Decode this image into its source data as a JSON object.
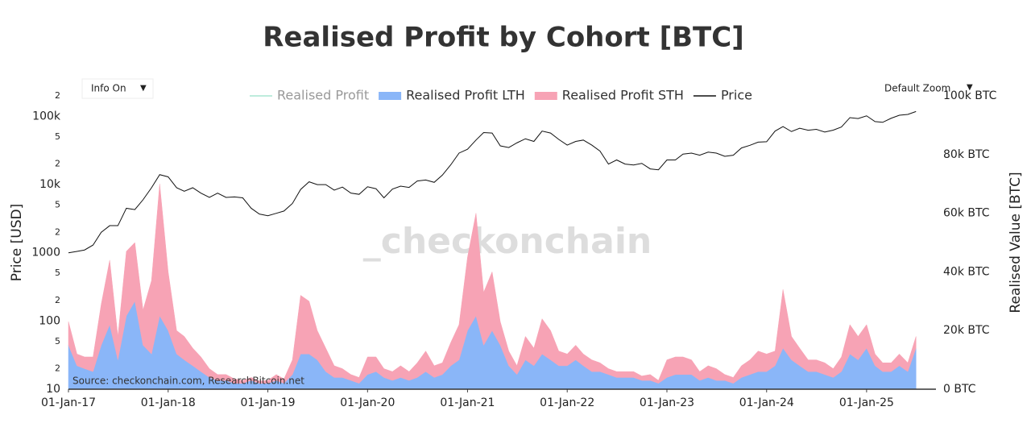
{
  "chart_data": {
    "type": "area",
    "title": "Realised Profit by Cohort [BTC]",
    "ylabel": "Price [USD]",
    "y2label": "Realised Value [BTC]",
    "source": "Source: checkonchain.com, ResearchBitcoin.net",
    "watermark": "_checkonchain",
    "buttons": [
      "Info On",
      "Default Zoom"
    ],
    "log_y": true,
    "grid": false,
    "legend": "top",
    "stacked": true,
    "xlim": [
      "2017-01-01",
      "2025-09-12"
    ],
    "xticks": [
      {
        "value": "2017-01-01",
        "label": "01-Jan-17"
      },
      {
        "value": "2018-01-01",
        "label": "01-Jan-18"
      },
      {
        "value": "2019-01-01",
        "label": "01-Jan-19"
      },
      {
        "value": "2020-01-01",
        "label": "01-Jan-20"
      },
      {
        "value": "2021-01-01",
        "label": "01-Jan-21"
      },
      {
        "value": "2022-01-01",
        "label": "01-Jan-22"
      },
      {
        "value": "2023-01-01",
        "label": "01-Jan-23"
      },
      {
        "value": "2024-01-01",
        "label": "01-Jan-24"
      },
      {
        "value": "2025-01-01",
        "label": "01-Jan-25"
      }
    ],
    "ylim": [
      10,
      200000
    ],
    "yticks": [
      10,
      {
        "value": 20,
        "label": "2"
      },
      {
        "value": 50,
        "label": "5"
      },
      100,
      {
        "value": 200,
        "label": "2"
      },
      {
        "value": 500,
        "label": "5"
      },
      1000,
      {
        "value": 2000,
        "label": "2"
      },
      {
        "value": 5000,
        "label": "5"
      },
      {
        "value": 10000,
        "label": "10k"
      },
      {
        "value": 20000,
        "label": "2"
      },
      {
        "value": 50000,
        "label": "5"
      },
      {
        "value": 100000,
        "label": "100k"
      },
      {
        "value": 200000,
        "label": "2"
      }
    ],
    "y2lim": [
      0,
      100000
    ],
    "y2ticks": [
      {
        "value": 0,
        "label": "0 BTC"
      },
      {
        "value": 20000,
        "label": "20k BTC"
      },
      {
        "value": 40000,
        "label": "40k BTC"
      },
      {
        "value": 60000,
        "label": "60k BTC"
      },
      {
        "value": 80000,
        "label": "80k BTC"
      },
      {
        "value": 100000,
        "label": "100k BTC"
      }
    ],
    "x": [
      "2017-01-01",
      "2017-02-01",
      "2017-03-01",
      "2017-04-01",
      "2017-05-01",
      "2017-06-01",
      "2017-07-01",
      "2017-08-01",
      "2017-09-01",
      "2017-10-01",
      "2017-11-01",
      "2017-12-01",
      "2018-01-01",
      "2018-02-01",
      "2018-03-01",
      "2018-04-01",
      "2018-05-01",
      "2018-06-01",
      "2018-07-01",
      "2018-08-01",
      "2018-09-01",
      "2018-10-01",
      "2018-11-01",
      "2018-12-01",
      "2019-01-01",
      "2019-02-01",
      "2019-03-01",
      "2019-04-01",
      "2019-05-01",
      "2019-06-01",
      "2019-07-01",
      "2019-08-01",
      "2019-09-01",
      "2019-10-01",
      "2019-11-01",
      "2019-12-01",
      "2020-01-01",
      "2020-02-01",
      "2020-03-01",
      "2020-04-01",
      "2020-05-01",
      "2020-06-01",
      "2020-07-01",
      "2020-08-01",
      "2020-09-01",
      "2020-10-01",
      "2020-11-01",
      "2020-12-01",
      "2021-01-01",
      "2021-02-01",
      "2021-03-01",
      "2021-04-01",
      "2021-05-01",
      "2021-06-01",
      "2021-07-01",
      "2021-08-01",
      "2021-09-01",
      "2021-10-01",
      "2021-11-01",
      "2021-12-01",
      "2022-01-01",
      "2022-02-01",
      "2022-03-01",
      "2022-04-01",
      "2022-05-01",
      "2022-06-01",
      "2022-07-01",
      "2022-08-01",
      "2022-09-01",
      "2022-10-01",
      "2022-11-01",
      "2022-12-01",
      "2023-01-01",
      "2023-02-01",
      "2023-03-01",
      "2023-04-01",
      "2023-05-01",
      "2023-06-01",
      "2023-07-01",
      "2023-08-01",
      "2023-09-01",
      "2023-10-01",
      "2023-11-01",
      "2023-12-01",
      "2024-01-01",
      "2024-02-01",
      "2024-03-01",
      "2024-04-01",
      "2024-05-01",
      "2024-06-01",
      "2024-07-01",
      "2024-08-01",
      "2024-09-01",
      "2024-10-01",
      "2024-11-01",
      "2024-12-01",
      "2025-01-01",
      "2025-02-01",
      "2025-03-01",
      "2025-04-01",
      "2025-05-01",
      "2025-06-01",
      "2025-07-01"
    ],
    "series": [
      {
        "name": "Realised Profit",
        "color": "#a8e6d0",
        "visible": false
      },
      {
        "name": "Realised Profit LTH",
        "color": "#8ab6f8",
        "axis": "y2",
        "values": [
          15000,
          8000,
          7000,
          6000,
          15000,
          22000,
          10000,
          25000,
          30000,
          15000,
          12000,
          25000,
          20000,
          12000,
          10000,
          8000,
          6000,
          4000,
          3000,
          3000,
          2000,
          2000,
          3000,
          2000,
          2000,
          3000,
          2000,
          5000,
          12000,
          12000,
          10000,
          6000,
          4000,
          4000,
          3000,
          2000,
          5000,
          6000,
          4000,
          3000,
          4000,
          3000,
          4000,
          6000,
          4000,
          5000,
          8000,
          10000,
          20000,
          25000,
          15000,
          20000,
          15000,
          8000,
          5000,
          10000,
          8000,
          12000,
          10000,
          8000,
          8000,
          10000,
          8000,
          6000,
          6000,
          5000,
          4000,
          4000,
          4000,
          3000,
          3000,
          2000,
          4000,
          5000,
          5000,
          5000,
          3000,
          4000,
          3000,
          3000,
          2000,
          4000,
          5000,
          6000,
          6000,
          8000,
          14000,
          10000,
          8000,
          6000,
          6000,
          5000,
          4000,
          6000,
          12000,
          10000,
          14000,
          8000,
          6000,
          6000,
          8000,
          6000,
          14000
        ]
      },
      {
        "name": "Realised Profit STH",
        "color": "#f7a3b5",
        "axis": "y2",
        "values": [
          8000,
          4000,
          4000,
          5000,
          14000,
          22000,
          8000,
          22000,
          20000,
          12000,
          25000,
          45000,
          20000,
          8000,
          8000,
          6000,
          5000,
          3000,
          2000,
          2000,
          1500,
          1000,
          1000,
          800,
          1000,
          2000,
          1500,
          5000,
          20000,
          18000,
          10000,
          8000,
          4000,
          3000,
          2000,
          2000,
          6000,
          5000,
          3000,
          3000,
          4000,
          3000,
          5000,
          7000,
          4000,
          4000,
          8000,
          12000,
          25000,
          35000,
          18000,
          20000,
          8000,
          5000,
          3000,
          8000,
          6000,
          12000,
          10000,
          5000,
          4000,
          5000,
          4000,
          4000,
          3000,
          2000,
          2000,
          2000,
          2000,
          1500,
          2000,
          1000,
          6000,
          6000,
          6000,
          5000,
          3000,
          4000,
          4000,
          2000,
          2000,
          4000,
          5000,
          7000,
          6000,
          5000,
          20000,
          8000,
          6000,
          4000,
          4000,
          4000,
          3000,
          5000,
          10000,
          8000,
          8000,
          4000,
          3000,
          3000,
          4000,
          3000,
          4000
        ]
      },
      {
        "name": "Price",
        "color": "#111111",
        "axis": "y",
        "values": [
          1000,
          1050,
          1100,
          1300,
          2000,
          2500,
          2500,
          4500,
          4300,
          6000,
          9000,
          14000,
          13000,
          9000,
          8000,
          9000,
          7500,
          6500,
          7500,
          6500,
          6600,
          6400,
          4500,
          3700,
          3500,
          3800,
          4100,
          5300,
          8500,
          11000,
          10000,
          10000,
          8300,
          9200,
          7500,
          7200,
          9300,
          8700,
          6400,
          8600,
          9500,
          9100,
          11300,
          11700,
          10800,
          13800,
          19600,
          29000,
          33000,
          45000,
          58000,
          57000,
          37000,
          35000,
          41000,
          47000,
          43000,
          61000,
          57000,
          46000,
          38000,
          43000,
          45000,
          38000,
          31000,
          20000,
          23000,
          20000,
          19400,
          20500,
          17000,
          16500,
          23000,
          23000,
          28000,
          29000,
          27000,
          30000,
          29000,
          26000,
          27000,
          34500,
          37700,
          42000,
          42500,
          61000,
          71000,
          60000,
          67000,
          62700,
          64600,
          59000,
          63000,
          70000,
          96000,
          93000,
          102000,
          84000,
          82000,
          94000,
          104000,
          107000,
          118000
        ]
      }
    ]
  }
}
